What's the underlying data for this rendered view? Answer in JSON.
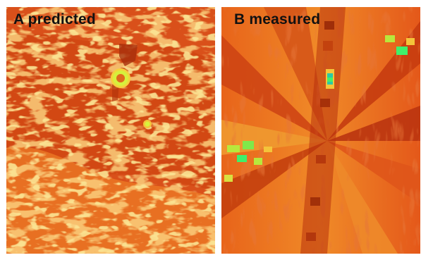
{
  "panels": [
    {
      "label": "A predicted"
    },
    {
      "label": "B measured"
    }
  ],
  "colors": {
    "background": "#ffffff",
    "dark_red": "#c2370d",
    "deep_orange": "#d94a10",
    "orange": "#ea6a1c",
    "light_orange": "#f3962e",
    "yellow": "#f4c43a",
    "lime": "#b8e83c",
    "green": "#3ff06a",
    "teal": "#2cc9a6"
  }
}
